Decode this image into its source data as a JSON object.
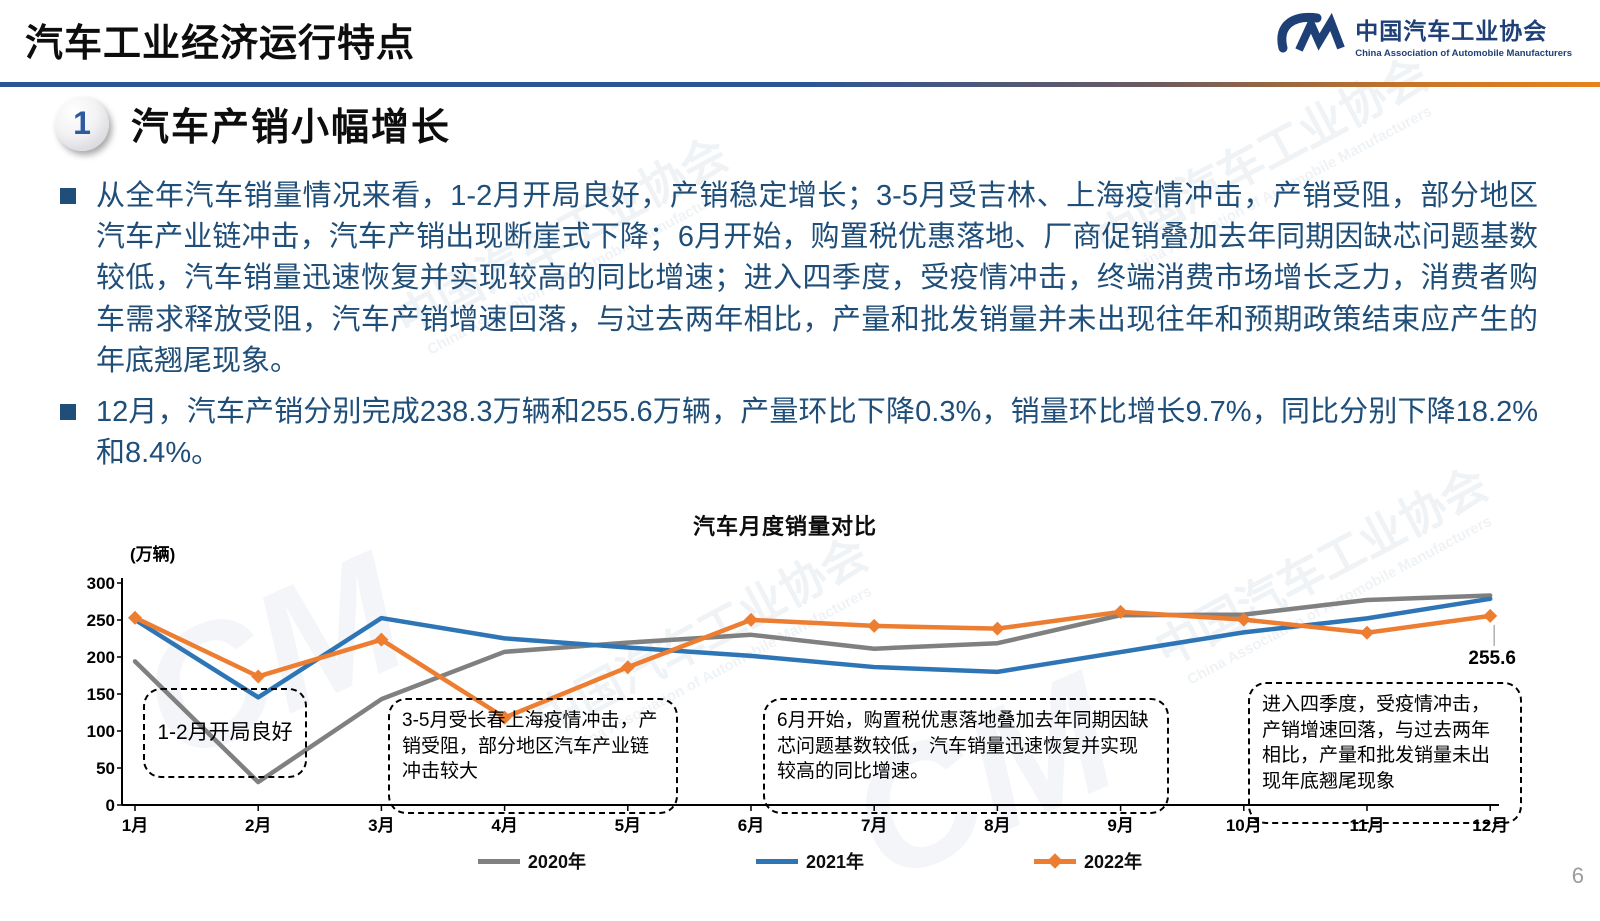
{
  "page": {
    "number": "6"
  },
  "header": {
    "title": "汽车工业经济运行特点",
    "logo": {
      "name_cn": "中国汽车工业协会",
      "name_en": "China Association of Automobile Manufacturers"
    }
  },
  "section": {
    "number": "1",
    "title": "汽车产销小幅增长"
  },
  "bullets": [
    {
      "text": "从全年汽车销量情况来看，1-2月开局良好，产销稳定增长；3-5月受吉林、上海疫情冲击，产销受阻，部分地区汽车产业链冲击，汽车产销出现断崖式下降；6月开始，购置税优惠落地、厂商促销叠加去年同期因缺芯问题基数较低，汽车销量迅速恢复并实现较高的同比增速；进入四季度，受疫情冲击，终端消费市场增长乏力，消费者购车需求释放受阻，汽车产销增速回落，与过去两年相比，产量和批发销量并未出现往年和预期政策结束应产生的年底翘尾现象。"
    },
    {
      "text": "12月，汽车产销分别完成238.3万辆和255.6万辆，产量环比下降0.3%，销量环比增长9.7%，同比分别下降18.2%和8.4%。"
    }
  ],
  "chart_data": {
    "type": "line",
    "title": "汽车月度销量对比",
    "ylabel": "(万辆)",
    "ylim": [
      0,
      300
    ],
    "ytick_step": 50,
    "grid": false,
    "legend_position": "bottom",
    "categories": [
      "1月",
      "2月",
      "3月",
      "4月",
      "5月",
      "6月",
      "7月",
      "8月",
      "9月",
      "10月",
      "11月",
      "12月"
    ],
    "series": [
      {
        "name": "2020年",
        "color": "#808080",
        "marker": "none",
        "values": [
          194.1,
          31.0,
          143.0,
          207.0,
          219.4,
          230.0,
          211.2,
          218.6,
          256.5,
          257.3,
          277.0,
          283.1
        ]
      },
      {
        "name": "2021年",
        "color": "#2e75b6",
        "marker": "none",
        "values": [
          250.3,
          145.5,
          252.6,
          225.2,
          212.8,
          201.5,
          186.4,
          179.9,
          206.7,
          233.3,
          252.2,
          278.6
        ]
      },
      {
        "name": "2022年",
        "color": "#ed7d31",
        "marker": "diamond",
        "values": [
          253.1,
          173.7,
          223.4,
          118.1,
          186.2,
          250.2,
          242.0,
          238.3,
          261.0,
          250.5,
          232.8,
          255.6
        ]
      }
    ],
    "end_label": "255.6",
    "annotations": [
      {
        "text": "1-2月开局良好"
      },
      {
        "text": "3-5月受长春上海疫情冲击，产销受阻，部分地区汽车产业链冲击较大"
      },
      {
        "text": "6月开始，购置税优惠落地叠加去年同期因缺芯问题基数较低，汽车销量迅速恢复并实现较高的同比增速。"
      },
      {
        "text": "进入四季度，受疫情冲击，产销增速回落，与过去两年相比，产量和批发销量未出现年底翘尾现象"
      }
    ]
  },
  "watermark": {
    "text_cn": "中国汽车工业协会",
    "text_en": "China Association of Automobile Manufacturers",
    "mark": "CM"
  }
}
